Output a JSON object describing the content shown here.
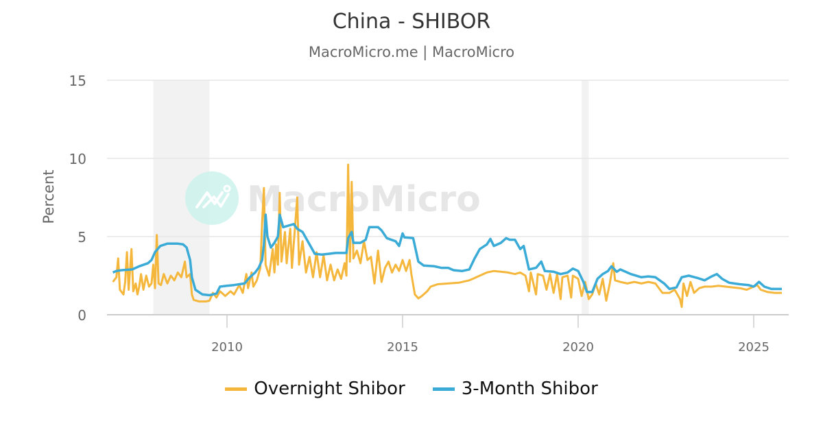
{
  "header": {
    "title": "China - SHIBOR",
    "subtitle": "MacroMicro.me | MacroMicro"
  },
  "watermark": {
    "text": "MacroMicro",
    "icon": "macromicro-logo-icon"
  },
  "colors": {
    "overnight": "#F5B73B",
    "three_month": "#3AAAD6",
    "grid": "#e6e6e6",
    "recession_band": "#f2f2f2",
    "axis_text": "#666666"
  },
  "legend": {
    "items": [
      {
        "label": "Overnight Shibor",
        "color": "#F5B73B"
      },
      {
        "label": "3-Month Shibor",
        "color": "#3AAAD6"
      }
    ]
  },
  "chart_data": {
    "type": "line",
    "title": "China - SHIBOR",
    "subtitle": "MacroMicro.me | MacroMicro",
    "xlabel": "",
    "ylabel": "Percent",
    "ylim": [
      0,
      15
    ],
    "yticks": [
      0,
      5,
      10,
      15
    ],
    "xlim": [
      2006.5,
      2025.9
    ],
    "xticks": [
      2010,
      2015,
      2020,
      2025
    ],
    "grid": true,
    "legend_position": "bottom",
    "recession_bands": [
      [
        2007.9,
        2009.5
      ],
      [
        2020.1,
        2020.3
      ]
    ],
    "series": [
      {
        "name": "Overnight Shibor",
        "color": "#F5B73B",
        "points": [
          [
            2006.75,
            2.1
          ],
          [
            2006.85,
            2.4
          ],
          [
            2006.9,
            3.6
          ],
          [
            2006.95,
            1.6
          ],
          [
            2007.05,
            1.3
          ],
          [
            2007.1,
            2.1
          ],
          [
            2007.15,
            4.0
          ],
          [
            2007.2,
            1.6
          ],
          [
            2007.28,
            4.2
          ],
          [
            2007.33,
            1.5
          ],
          [
            2007.4,
            2.0
          ],
          [
            2007.45,
            1.3
          ],
          [
            2007.5,
            1.8
          ],
          [
            2007.55,
            2.6
          ],
          [
            2007.62,
            1.6
          ],
          [
            2007.7,
            2.5
          ],
          [
            2007.78,
            1.8
          ],
          [
            2007.85,
            2.0
          ],
          [
            2007.9,
            3.2
          ],
          [
            2007.95,
            1.7
          ],
          [
            2008.0,
            5.1
          ],
          [
            2008.05,
            2.0
          ],
          [
            2008.12,
            1.9
          ],
          [
            2008.2,
            2.6
          ],
          [
            2008.3,
            2.0
          ],
          [
            2008.4,
            2.5
          ],
          [
            2008.5,
            2.2
          ],
          [
            2008.6,
            2.7
          ],
          [
            2008.7,
            2.4
          ],
          [
            2008.8,
            3.4
          ],
          [
            2008.85,
            2.4
          ],
          [
            2008.95,
            2.6
          ],
          [
            2009.0,
            1.3
          ],
          [
            2009.05,
            0.95
          ],
          [
            2009.2,
            0.85
          ],
          [
            2009.4,
            0.85
          ],
          [
            2009.5,
            0.9
          ],
          [
            2009.6,
            1.4
          ],
          [
            2009.7,
            1.1
          ],
          [
            2009.8,
            1.5
          ],
          [
            2009.95,
            1.2
          ],
          [
            2010.1,
            1.5
          ],
          [
            2010.2,
            1.3
          ],
          [
            2010.35,
            1.9
          ],
          [
            2010.45,
            1.4
          ],
          [
            2010.55,
            2.6
          ],
          [
            2010.6,
            1.7
          ],
          [
            2010.7,
            2.7
          ],
          [
            2010.75,
            1.8
          ],
          [
            2010.85,
            2.2
          ],
          [
            2010.95,
            3.0
          ],
          [
            2011.0,
            5.9
          ],
          [
            2011.05,
            8.1
          ],
          [
            2011.1,
            3.2
          ],
          [
            2011.2,
            2.5
          ],
          [
            2011.3,
            4.2
          ],
          [
            2011.35,
            2.7
          ],
          [
            2011.4,
            4.5
          ],
          [
            2011.45,
            3.2
          ],
          [
            2011.5,
            7.8
          ],
          [
            2011.55,
            3.4
          ],
          [
            2011.65,
            5.3
          ],
          [
            2011.7,
            3.3
          ],
          [
            2011.8,
            5.5
          ],
          [
            2011.85,
            3.0
          ],
          [
            2012.0,
            7.5
          ],
          [
            2012.05,
            3.2
          ],
          [
            2012.15,
            4.7
          ],
          [
            2012.25,
            2.7
          ],
          [
            2012.35,
            3.7
          ],
          [
            2012.45,
            2.4
          ],
          [
            2012.55,
            4.0
          ],
          [
            2012.65,
            2.4
          ],
          [
            2012.75,
            3.8
          ],
          [
            2012.85,
            2.2
          ],
          [
            2012.95,
            3.2
          ],
          [
            2013.05,
            2.2
          ],
          [
            2013.15,
            2.9
          ],
          [
            2013.25,
            2.3
          ],
          [
            2013.35,
            3.3
          ],
          [
            2013.4,
            2.5
          ],
          [
            2013.45,
            9.6
          ],
          [
            2013.5,
            3.4
          ],
          [
            2013.55,
            8.5
          ],
          [
            2013.6,
            3.6
          ],
          [
            2013.7,
            4.1
          ],
          [
            2013.8,
            3.3
          ],
          [
            2013.9,
            4.7
          ],
          [
            2014.0,
            3.5
          ],
          [
            2014.1,
            3.7
          ],
          [
            2014.2,
            2.0
          ],
          [
            2014.3,
            4.1
          ],
          [
            2014.4,
            2.1
          ],
          [
            2014.5,
            3.0
          ],
          [
            2014.6,
            3.4
          ],
          [
            2014.7,
            2.7
          ],
          [
            2014.8,
            3.2
          ],
          [
            2014.9,
            2.8
          ],
          [
            2015.0,
            3.5
          ],
          [
            2015.1,
            2.8
          ],
          [
            2015.2,
            3.5
          ],
          [
            2015.25,
            2.6
          ],
          [
            2015.35,
            1.3
          ],
          [
            2015.45,
            1.05
          ],
          [
            2015.55,
            1.2
          ],
          [
            2015.7,
            1.5
          ],
          [
            2015.8,
            1.8
          ],
          [
            2016.0,
            1.95
          ],
          [
            2016.3,
            2.0
          ],
          [
            2016.6,
            2.05
          ],
          [
            2016.9,
            2.2
          ],
          [
            2017.0,
            2.3
          ],
          [
            2017.2,
            2.5
          ],
          [
            2017.4,
            2.7
          ],
          [
            2017.6,
            2.8
          ],
          [
            2017.8,
            2.75
          ],
          [
            2018.0,
            2.7
          ],
          [
            2018.2,
            2.6
          ],
          [
            2018.35,
            2.7
          ],
          [
            2018.5,
            2.5
          ],
          [
            2018.6,
            1.5
          ],
          [
            2018.65,
            2.7
          ],
          [
            2018.8,
            1.3
          ],
          [
            2018.85,
            2.6
          ],
          [
            2019.0,
            2.5
          ],
          [
            2019.1,
            1.6
          ],
          [
            2019.2,
            2.6
          ],
          [
            2019.3,
            1.4
          ],
          [
            2019.4,
            2.6
          ],
          [
            2019.5,
            1.0
          ],
          [
            2019.55,
            2.4
          ],
          [
            2019.7,
            2.5
          ],
          [
            2019.8,
            1.1
          ],
          [
            2019.85,
            2.5
          ],
          [
            2020.0,
            2.3
          ],
          [
            2020.1,
            1.2
          ],
          [
            2020.2,
            2.1
          ],
          [
            2020.3,
            1.0
          ],
          [
            2020.4,
            1.3
          ],
          [
            2020.5,
            2.0
          ],
          [
            2020.6,
            1.3
          ],
          [
            2020.7,
            2.3
          ],
          [
            2020.8,
            0.9
          ],
          [
            2020.9,
            2.0
          ],
          [
            2021.0,
            3.3
          ],
          [
            2021.05,
            2.2
          ],
          [
            2021.2,
            2.1
          ],
          [
            2021.4,
            2.0
          ],
          [
            2021.6,
            2.1
          ],
          [
            2021.8,
            2.0
          ],
          [
            2022.0,
            2.1
          ],
          [
            2022.2,
            2.0
          ],
          [
            2022.4,
            1.4
          ],
          [
            2022.6,
            1.4
          ],
          [
            2022.75,
            1.6
          ],
          [
            2022.9,
            1.0
          ],
          [
            2022.95,
            0.5
          ],
          [
            2023.0,
            2.0
          ],
          [
            2023.1,
            1.2
          ],
          [
            2023.2,
            2.1
          ],
          [
            2023.3,
            1.4
          ],
          [
            2023.45,
            1.7
          ],
          [
            2023.6,
            1.8
          ],
          [
            2023.8,
            1.8
          ],
          [
            2024.0,
            1.85
          ],
          [
            2024.2,
            1.8
          ],
          [
            2024.4,
            1.75
          ],
          [
            2024.6,
            1.7
          ],
          [
            2024.8,
            1.6
          ],
          [
            2025.0,
            1.8
          ],
          [
            2025.1,
            1.9
          ],
          [
            2025.2,
            1.6
          ],
          [
            2025.4,
            1.45
          ],
          [
            2025.6,
            1.4
          ],
          [
            2025.8,
            1.4
          ]
        ]
      },
      {
        "name": "3-Month Shibor",
        "color": "#3AAAD6",
        "points": [
          [
            2006.75,
            2.7
          ],
          [
            2006.85,
            2.8
          ],
          [
            2007.0,
            2.85
          ],
          [
            2007.3,
            2.9
          ],
          [
            2007.5,
            3.1
          ],
          [
            2007.75,
            3.3
          ],
          [
            2007.85,
            3.5
          ],
          [
            2007.95,
            4.0
          ],
          [
            2008.1,
            4.4
          ],
          [
            2008.3,
            4.55
          ],
          [
            2008.6,
            4.55
          ],
          [
            2008.75,
            4.5
          ],
          [
            2008.85,
            4.3
          ],
          [
            2008.95,
            3.5
          ],
          [
            2009.0,
            2.4
          ],
          [
            2009.1,
            1.6
          ],
          [
            2009.3,
            1.3
          ],
          [
            2009.5,
            1.25
          ],
          [
            2009.7,
            1.35
          ],
          [
            2009.8,
            1.8
          ],
          [
            2010.0,
            1.85
          ],
          [
            2010.2,
            1.9
          ],
          [
            2010.5,
            2.0
          ],
          [
            2010.65,
            2.4
          ],
          [
            2010.8,
            2.7
          ],
          [
            2010.9,
            3.0
          ],
          [
            2011.0,
            3.5
          ],
          [
            2011.05,
            4.5
          ],
          [
            2011.1,
            6.4
          ],
          [
            2011.15,
            5.0
          ],
          [
            2011.25,
            4.3
          ],
          [
            2011.35,
            4.6
          ],
          [
            2011.45,
            5.0
          ],
          [
            2011.5,
            6.4
          ],
          [
            2011.6,
            5.6
          ],
          [
            2011.75,
            5.7
          ],
          [
            2011.9,
            5.8
          ],
          [
            2012.0,
            5.5
          ],
          [
            2012.15,
            5.3
          ],
          [
            2012.35,
            4.5
          ],
          [
            2012.5,
            3.9
          ],
          [
            2012.7,
            3.85
          ],
          [
            2012.9,
            3.9
          ],
          [
            2013.1,
            3.95
          ],
          [
            2013.4,
            3.95
          ],
          [
            2013.45,
            4.9
          ],
          [
            2013.55,
            5.3
          ],
          [
            2013.6,
            4.6
          ],
          [
            2013.8,
            4.6
          ],
          [
            2013.95,
            4.8
          ],
          [
            2014.05,
            5.6
          ],
          [
            2014.3,
            5.6
          ],
          [
            2014.4,
            5.4
          ],
          [
            2014.55,
            4.9
          ],
          [
            2014.8,
            4.7
          ],
          [
            2014.9,
            4.4
          ],
          [
            2015.0,
            5.2
          ],
          [
            2015.05,
            4.95
          ],
          [
            2015.3,
            4.9
          ],
          [
            2015.45,
            3.4
          ],
          [
            2015.6,
            3.15
          ],
          [
            2015.9,
            3.1
          ],
          [
            2016.1,
            3.0
          ],
          [
            2016.3,
            3.0
          ],
          [
            2016.45,
            2.85
          ],
          [
            2016.7,
            2.8
          ],
          [
            2016.9,
            2.9
          ],
          [
            2017.05,
            3.6
          ],
          [
            2017.2,
            4.2
          ],
          [
            2017.4,
            4.5
          ],
          [
            2017.5,
            4.85
          ],
          [
            2017.6,
            4.4
          ],
          [
            2017.8,
            4.6
          ],
          [
            2017.95,
            4.9
          ],
          [
            2018.05,
            4.8
          ],
          [
            2018.2,
            4.8
          ],
          [
            2018.35,
            4.2
          ],
          [
            2018.45,
            4.4
          ],
          [
            2018.6,
            2.9
          ],
          [
            2018.8,
            3.0
          ],
          [
            2018.95,
            3.4
          ],
          [
            2019.05,
            2.8
          ],
          [
            2019.3,
            2.75
          ],
          [
            2019.5,
            2.6
          ],
          [
            2019.7,
            2.7
          ],
          [
            2019.85,
            2.95
          ],
          [
            2020.0,
            2.8
          ],
          [
            2020.15,
            2.1
          ],
          [
            2020.25,
            1.45
          ],
          [
            2020.4,
            1.45
          ],
          [
            2020.55,
            2.3
          ],
          [
            2020.7,
            2.6
          ],
          [
            2020.85,
            2.8
          ],
          [
            2020.95,
            3.1
          ],
          [
            2021.1,
            2.75
          ],
          [
            2021.2,
            2.9
          ],
          [
            2021.5,
            2.6
          ],
          [
            2021.8,
            2.4
          ],
          [
            2022.0,
            2.45
          ],
          [
            2022.2,
            2.4
          ],
          [
            2022.45,
            2.0
          ],
          [
            2022.6,
            1.65
          ],
          [
            2022.8,
            1.75
          ],
          [
            2022.95,
            2.4
          ],
          [
            2023.15,
            2.5
          ],
          [
            2023.4,
            2.35
          ],
          [
            2023.6,
            2.2
          ],
          [
            2023.8,
            2.45
          ],
          [
            2023.95,
            2.6
          ],
          [
            2024.1,
            2.3
          ],
          [
            2024.3,
            2.05
          ],
          [
            2024.6,
            1.95
          ],
          [
            2024.85,
            1.9
          ],
          [
            2025.0,
            1.8
          ],
          [
            2025.15,
            2.1
          ],
          [
            2025.3,
            1.8
          ],
          [
            2025.5,
            1.65
          ],
          [
            2025.8,
            1.65
          ]
        ]
      }
    ]
  }
}
